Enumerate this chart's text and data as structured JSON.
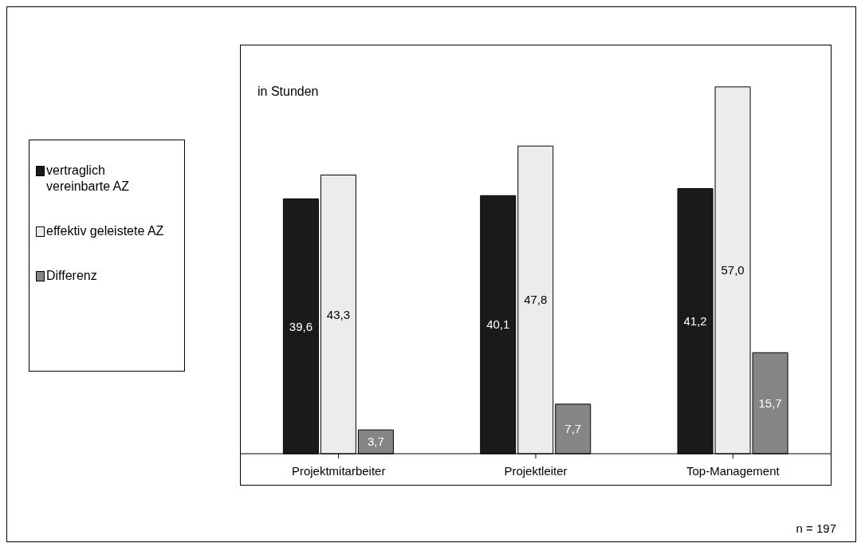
{
  "chart_data": {
    "type": "bar",
    "categories": [
      "Projektmitarbeiter",
      "Projektleiter",
      "Top-Management"
    ],
    "series": [
      {
        "name": "vertraglich vereinbarte AZ",
        "color": "#1a1a1a",
        "values": [
          39.6,
          40.1,
          41.2
        ],
        "value_labels": [
          "39,6",
          "40,1",
          "41,2"
        ]
      },
      {
        "name": "effektiv geleistete AZ",
        "color": "#ececec",
        "values": [
          43.3,
          47.8,
          57.0
        ],
        "value_labels": [
          "43,3",
          "47,8",
          "57,0"
        ]
      },
      {
        "name": "Differenz",
        "color": "#858585",
        "values": [
          3.7,
          7.7,
          15.7
        ],
        "value_labels": [
          "3,7",
          "7,7",
          "15,7"
        ]
      }
    ],
    "legend": "left",
    "annotations": [
      "in Stunden",
      "n = 197"
    ]
  }
}
